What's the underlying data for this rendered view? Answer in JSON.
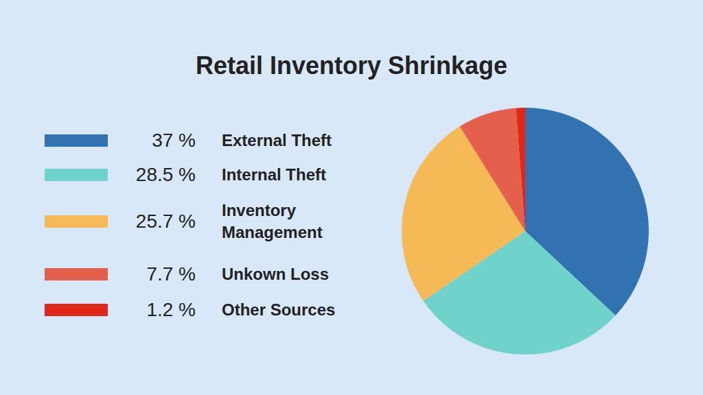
{
  "chart_data": {
    "type": "pie",
    "title": "Retail Inventory Shrinkage",
    "categories": [
      "External Theft",
      "Internal Theft",
      "Inventory Management",
      "Unkown Loss",
      "Other Sources"
    ],
    "values": [
      37,
      28.5,
      25.7,
      7.7,
      1.2
    ],
    "value_labels": [
      "37 %",
      "28.5 %",
      "25.7 %",
      "7.7 %",
      "1.2 %"
    ],
    "colors": [
      "#3272b0",
      "#6fd3cc",
      "#f5b955",
      "#e5604c",
      "#e0271a"
    ],
    "legend": "left"
  }
}
